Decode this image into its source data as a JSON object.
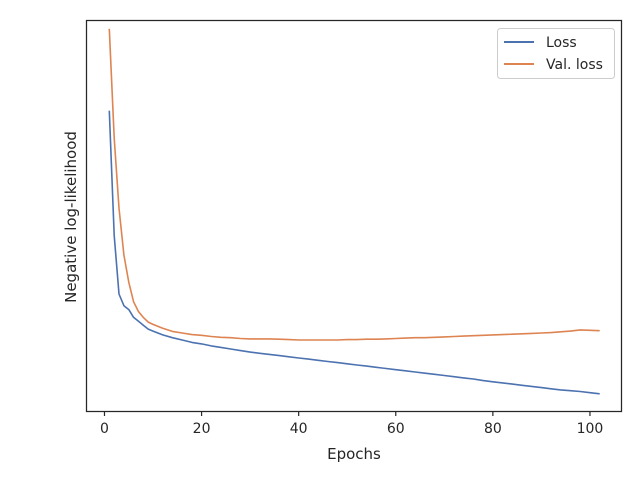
{
  "chart_data": {
    "type": "line",
    "xlabel": "Epochs",
    "ylabel": "Negative log-likelihood",
    "xlim": [
      -3.6,
      106.6
    ],
    "ylim": [
      0.0,
      1.0
    ],
    "xticks": [
      0,
      20,
      40,
      60,
      80,
      100
    ],
    "yticks_shown": false,
    "grid": false,
    "legend_position": "top-right",
    "series": [
      {
        "name": "Loss",
        "color": "#4c72b0",
        "x": [
          1,
          2,
          3,
          4,
          5,
          6,
          7,
          8,
          9,
          10,
          12,
          14,
          16,
          18,
          20,
          22,
          24,
          26,
          28,
          30,
          32,
          34,
          36,
          38,
          40,
          42,
          44,
          46,
          48,
          50,
          52,
          54,
          56,
          58,
          60,
          62,
          64,
          66,
          68,
          70,
          72,
          74,
          76,
          78,
          80,
          82,
          84,
          86,
          88,
          90,
          92,
          94,
          96,
          98,
          100,
          102
        ],
        "y": [
          0.77,
          0.45,
          0.3,
          0.27,
          0.26,
          0.24,
          0.23,
          0.22,
          0.21,
          0.205,
          0.195,
          0.188,
          0.182,
          0.176,
          0.172,
          0.167,
          0.163,
          0.159,
          0.155,
          0.151,
          0.148,
          0.145,
          0.142,
          0.139,
          0.136,
          0.133,
          0.13,
          0.127,
          0.124,
          0.121,
          0.118,
          0.115,
          0.112,
          0.109,
          0.106,
          0.103,
          0.1,
          0.097,
          0.094,
          0.091,
          0.088,
          0.085,
          0.082,
          0.078,
          0.075,
          0.072,
          0.069,
          0.066,
          0.063,
          0.06,
          0.057,
          0.054,
          0.052,
          0.05,
          0.047,
          0.044
        ]
      },
      {
        "name": "Val. loss",
        "color": "#dd8452",
        "x": [
          1,
          2,
          3,
          4,
          5,
          6,
          7,
          8,
          9,
          10,
          12,
          14,
          16,
          18,
          20,
          22,
          24,
          26,
          28,
          30,
          32,
          34,
          36,
          38,
          40,
          42,
          44,
          46,
          48,
          50,
          52,
          54,
          56,
          58,
          60,
          62,
          64,
          66,
          68,
          70,
          72,
          74,
          76,
          78,
          80,
          82,
          84,
          86,
          88,
          90,
          92,
          94,
          96,
          98,
          100,
          102
        ],
        "y": [
          0.98,
          0.7,
          0.52,
          0.4,
          0.33,
          0.28,
          0.255,
          0.24,
          0.228,
          0.222,
          0.212,
          0.204,
          0.2,
          0.196,
          0.194,
          0.191,
          0.189,
          0.188,
          0.186,
          0.185,
          0.185,
          0.185,
          0.184,
          0.183,
          0.182,
          0.182,
          0.182,
          0.182,
          0.182,
          0.183,
          0.183,
          0.184,
          0.184,
          0.185,
          0.186,
          0.187,
          0.188,
          0.188,
          0.189,
          0.19,
          0.191,
          0.192,
          0.193,
          0.194,
          0.195,
          0.196,
          0.197,
          0.198,
          0.199,
          0.2,
          0.201,
          0.203,
          0.205,
          0.208,
          0.207,
          0.206
        ]
      }
    ]
  }
}
